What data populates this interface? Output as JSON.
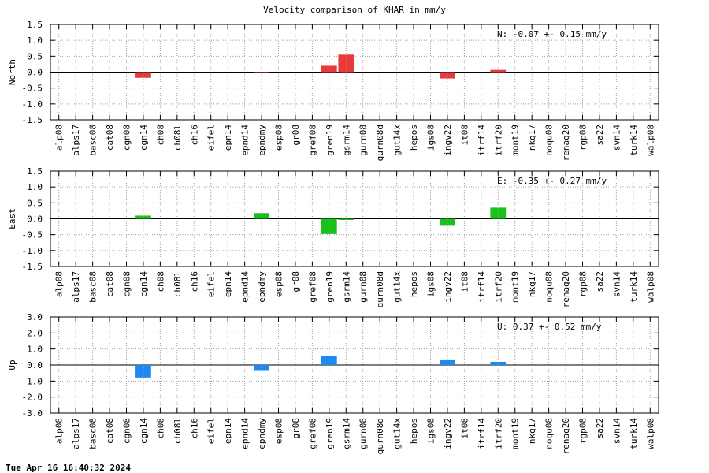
{
  "footer": "Tue Apr 16 16:40:32 2024",
  "chart_data": [
    {
      "type": "bar",
      "title": "Velocity comparison of KHAR in mm/y",
      "ylabel": "North",
      "ylim": [
        -1.5,
        1.5
      ],
      "yticks": [
        "1.5",
        "1.0",
        "0.5",
        "0.0",
        "-0.5",
        "-1.0",
        "-1.5"
      ],
      "categories": [
        "alp08",
        "alps17",
        "basc08",
        "cat08",
        "cgn08",
        "cgn14",
        "ch08",
        "ch08l",
        "ch16",
        "eifel",
        "epn14",
        "epnd14",
        "epndmy",
        "esp08",
        "gr08",
        "gref08",
        "gren19",
        "gsrm14",
        "gurn08",
        "gurn08d",
        "gut14x",
        "hepos",
        "igs08",
        "ingv22",
        "it08",
        "itrf14",
        "itrf20",
        "mont19",
        "nkg17",
        "noqu08",
        "renag20",
        "rgp08",
        "sa22",
        "svn14",
        "turk14",
        "walp08"
      ],
      "values": [
        null,
        null,
        null,
        null,
        null,
        -0.18,
        null,
        null,
        null,
        null,
        null,
        null,
        -0.02,
        null,
        null,
        null,
        0.2,
        0.55,
        null,
        null,
        null,
        null,
        null,
        -0.2,
        null,
        null,
        0.07,
        null,
        null,
        null,
        null,
        null,
        null,
        null,
        null,
        null
      ],
      "color": "#e8393b",
      "legend": "N:  -0.07 +-  0.15 mm/y",
      "grid": true
    },
    {
      "type": "bar",
      "title": "",
      "ylabel": "East",
      "ylim": [
        -1.5,
        1.5
      ],
      "yticks": [
        "1.5",
        "1.0",
        "0.5",
        "0.0",
        "-0.5",
        "-1.0",
        "-1.5"
      ],
      "categories": [
        "alp08",
        "alps17",
        "basc08",
        "cat08",
        "cgn08",
        "cgn14",
        "ch08",
        "ch08l",
        "ch16",
        "eifel",
        "epn14",
        "epnd14",
        "epndmy",
        "esp08",
        "gr08",
        "gref08",
        "gren19",
        "gsrm14",
        "gurn08",
        "gurn08d",
        "gut14x",
        "hepos",
        "igs08",
        "ingv22",
        "it08",
        "itrf14",
        "itrf20",
        "mont19",
        "nkg17",
        "noqu08",
        "renag20",
        "rgp08",
        "sa22",
        "svn14",
        "turk14",
        "walp08"
      ],
      "values": [
        null,
        null,
        null,
        null,
        null,
        0.1,
        null,
        null,
        null,
        null,
        null,
        null,
        0.18,
        null,
        null,
        null,
        -0.48,
        -0.03,
        null,
        null,
        null,
        null,
        null,
        -0.22,
        null,
        null,
        0.35,
        null,
        null,
        null,
        null,
        null,
        null,
        null,
        null,
        null
      ],
      "color": "#1cc01c",
      "legend": "E:  -0.35 +-  0.27 mm/y",
      "grid": true
    },
    {
      "type": "bar",
      "title": "",
      "ylabel": "Up",
      "ylim": [
        -3.0,
        3.0
      ],
      "yticks": [
        "3.0",
        "2.0",
        "1.0",
        "0.0",
        "-1.0",
        "-2.0",
        "-3.0"
      ],
      "categories": [
        "alp08",
        "alps17",
        "basc08",
        "cat08",
        "cgn08",
        "cgn14",
        "ch08",
        "ch08l",
        "ch16",
        "eifel",
        "epn14",
        "epnd14",
        "epndmy",
        "esp08",
        "gr08",
        "gref08",
        "gren19",
        "gsrm14",
        "gurn08",
        "gurn08d",
        "gut14x",
        "hepos",
        "igs08",
        "ingv22",
        "it08",
        "itrf14",
        "itrf20",
        "mont19",
        "nkg17",
        "noqu08",
        "renag20",
        "rgp08",
        "sa22",
        "svn14",
        "turk14",
        "walp08"
      ],
      "values": [
        null,
        null,
        null,
        null,
        null,
        -0.78,
        null,
        null,
        null,
        null,
        null,
        null,
        -0.32,
        null,
        null,
        null,
        0.55,
        null,
        null,
        null,
        null,
        null,
        null,
        0.3,
        null,
        null,
        0.2,
        null,
        null,
        null,
        null,
        null,
        null,
        null,
        null,
        null
      ],
      "color": "#1e8af0",
      "legend": "U:   0.37 +-  0.52 mm/y",
      "grid": true
    }
  ]
}
